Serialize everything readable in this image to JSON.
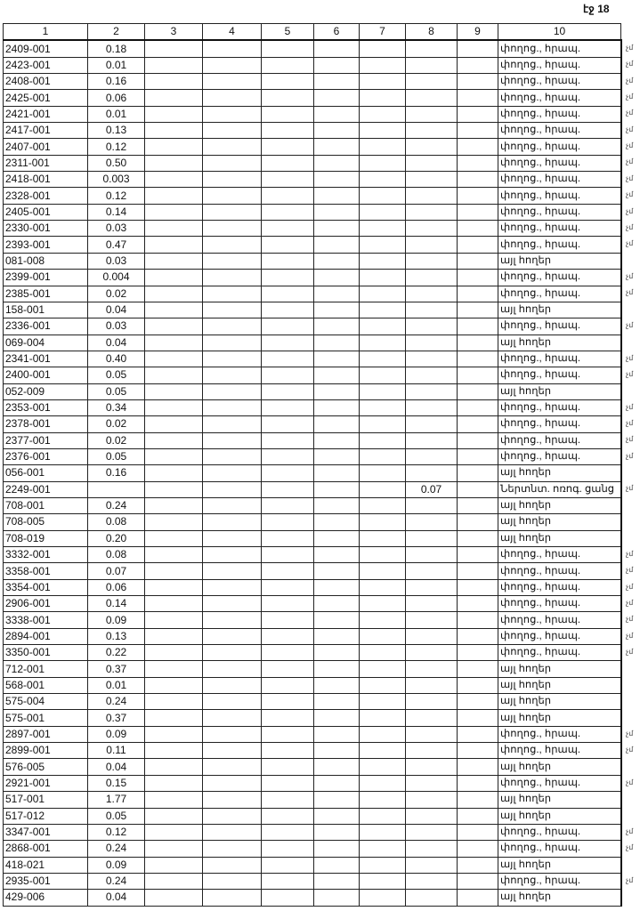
{
  "page_label": "էջ 18",
  "table": {
    "headers": [
      "1",
      "2",
      "3",
      "4",
      "5",
      "6",
      "7",
      "8",
      "9",
      "10"
    ],
    "rows": [
      {
        "c1": "2409-001",
        "c2": "0.18",
        "c8": "",
        "c10": "փողոց., հրապ.",
        "mark": "չմ"
      },
      {
        "c1": "2423-001",
        "c2": "0.01",
        "c8": "",
        "c10": "փողոց., հրապ.",
        "mark": "չմ"
      },
      {
        "c1": "2408-001",
        "c2": "0.16",
        "c8": "",
        "c10": "փողոց., հրապ.",
        "mark": "չմ"
      },
      {
        "c1": "2425-001",
        "c2": "0.06",
        "c8": "",
        "c10": "փողոց., հրապ.",
        "mark": "չմ"
      },
      {
        "c1": "2421-001",
        "c2": "0.01",
        "c8": "",
        "c10": "փողոց., հրապ.",
        "mark": "չմ"
      },
      {
        "c1": "2417-001",
        "c2": "0.13",
        "c8": "",
        "c10": "փողոց., հրապ.",
        "mark": "չմ"
      },
      {
        "c1": "2407-001",
        "c2": "0.12",
        "c8": "",
        "c10": "փողոց., հրապ.",
        "mark": "չմ"
      },
      {
        "c1": "2311-001",
        "c2": "0.50",
        "c8": "",
        "c10": "փողոց., հրապ.",
        "mark": "չմ"
      },
      {
        "c1": "2418-001",
        "c2": "0.003",
        "c8": "",
        "c10": "փողոց., հրապ.",
        "mark": "չմ"
      },
      {
        "c1": "2328-001",
        "c2": "0.12",
        "c8": "",
        "c10": "փողոց., հրապ.",
        "mark": "չմ"
      },
      {
        "c1": "2405-001",
        "c2": "0.14",
        "c8": "",
        "c10": "փողոց., հրապ.",
        "mark": "չմ"
      },
      {
        "c1": "2330-001",
        "c2": "0.03",
        "c8": "",
        "c10": "փողոց., հրապ.",
        "mark": "չմ"
      },
      {
        "c1": "2393-001",
        "c2": "0.47",
        "c8": "",
        "c10": "փողոց., հրապ.",
        "mark": "չմ"
      },
      {
        "c1": "081-008",
        "c2": "0.03",
        "c8": "",
        "c10": "այլ հողեր",
        "mark": ""
      },
      {
        "c1": "2399-001",
        "c2": "0.004",
        "c8": "",
        "c10": "փողոց., հրապ.",
        "mark": "չմ"
      },
      {
        "c1": "2385-001",
        "c2": "0.02",
        "c8": "",
        "c10": "փողոց., հրապ.",
        "mark": "չմ"
      },
      {
        "c1": "158-001",
        "c2": "0.04",
        "c8": "",
        "c10": "այլ հողեր",
        "mark": ""
      },
      {
        "c1": "2336-001",
        "c2": "0.03",
        "c8": "",
        "c10": "փողոց., հրապ.",
        "mark": "չմ"
      },
      {
        "c1": "069-004",
        "c2": "0.04",
        "c8": "",
        "c10": "այլ հողեր",
        "mark": ""
      },
      {
        "c1": "2341-001",
        "c2": "0.40",
        "c8": "",
        "c10": "փողոց., հրապ.",
        "mark": "չմ"
      },
      {
        "c1": "2400-001",
        "c2": "0.05",
        "c8": "",
        "c10": "փողոց., հրապ.",
        "mark": "չմ"
      },
      {
        "c1": "052-009",
        "c2": "0.05",
        "c8": "",
        "c10": "այլ հողեր",
        "mark": ""
      },
      {
        "c1": "2353-001",
        "c2": "0.34",
        "c8": "",
        "c10": "փողոց., հրապ.",
        "mark": "չմ"
      },
      {
        "c1": "2378-001",
        "c2": "0.02",
        "c8": "",
        "c10": "փողոց., հրապ.",
        "mark": "չմ"
      },
      {
        "c1": "2377-001",
        "c2": "0.02",
        "c8": "",
        "c10": "փողոց., հրապ.",
        "mark": "չմ"
      },
      {
        "c1": "2376-001",
        "c2": "0.05",
        "c8": "",
        "c10": "փողոց., հրապ.",
        "mark": "չմ"
      },
      {
        "c1": "056-001",
        "c2": "0.16",
        "c8": "",
        "c10": "այլ հողեր",
        "mark": ""
      },
      {
        "c1": "2249-001",
        "c2": "",
        "c8": "0.07",
        "c10": "Ներտնտ. ոռոգ. ցանց",
        "mark": "չմ"
      },
      {
        "c1": "708-001",
        "c2": "0.24",
        "c8": "",
        "c10": "այլ հողեր",
        "mark": ""
      },
      {
        "c1": "708-005",
        "c2": "0.08",
        "c8": "",
        "c10": "այլ հողեր",
        "mark": ""
      },
      {
        "c1": "708-019",
        "c2": "0.20",
        "c8": "",
        "c10": "այլ հողեր",
        "mark": ""
      },
      {
        "c1": "3332-001",
        "c2": "0.08",
        "c8": "",
        "c10": "փողոց., հրապ.",
        "mark": "չմ"
      },
      {
        "c1": "3358-001",
        "c2": "0.07",
        "c8": "",
        "c10": "փողոց., հրապ.",
        "mark": "չմ"
      },
      {
        "c1": "3354-001",
        "c2": "0.06",
        "c8": "",
        "c10": "փողոց., հրապ.",
        "mark": "չմ"
      },
      {
        "c1": "2906-001",
        "c2": "0.14",
        "c8": "",
        "c10": "փողոց., հրապ.",
        "mark": "չմ"
      },
      {
        "c1": "3338-001",
        "c2": "0.09",
        "c8": "",
        "c10": "փողոց., հրապ.",
        "mark": "չմ"
      },
      {
        "c1": "2894-001",
        "c2": "0.13",
        "c8": "",
        "c10": "փողոց., հրապ.",
        "mark": "չմ"
      },
      {
        "c1": "3350-001",
        "c2": "0.22",
        "c8": "",
        "c10": "փողոց., հրապ.",
        "mark": "չմ"
      },
      {
        "c1": "712-001",
        "c2": "0.37",
        "c8": "",
        "c10": "այլ հողեր",
        "mark": ""
      },
      {
        "c1": "568-001",
        "c2": "0.01",
        "c8": "",
        "c10": "այլ հողեր",
        "mark": ""
      },
      {
        "c1": "575-004",
        "c2": "0.24",
        "c8": "",
        "c10": "այլ հողեր",
        "mark": ""
      },
      {
        "c1": "575-001",
        "c2": "0.37",
        "c8": "",
        "c10": "այլ հողեր",
        "mark": ""
      },
      {
        "c1": "2897-001",
        "c2": "0.09",
        "c8": "",
        "c10": "փողոց., հրապ.",
        "mark": "չմ"
      },
      {
        "c1": "2899-001",
        "c2": "0.11",
        "c8": "",
        "c10": "փողոց., հրապ.",
        "mark": "չմ"
      },
      {
        "c1": "576-005",
        "c2": "0.04",
        "c8": "",
        "c10": "այլ հողեր",
        "mark": ""
      },
      {
        "c1": "2921-001",
        "c2": "0.15",
        "c8": "",
        "c10": "փողոց., հրապ.",
        "mark": "չմ"
      },
      {
        "c1": "517-001",
        "c2": "1.77",
        "c8": "",
        "c10": "այլ հողեր",
        "mark": ""
      },
      {
        "c1": "517-012",
        "c2": "0.05",
        "c8": "",
        "c10": "այլ հողեր",
        "mark": ""
      },
      {
        "c1": "3347-001",
        "c2": "0.12",
        "c8": "",
        "c10": "փողոց., հրապ.",
        "mark": "չմ"
      },
      {
        "c1": "2868-001",
        "c2": "0.24",
        "c8": "",
        "c10": "փողոց., հրապ.",
        "mark": "չմ"
      },
      {
        "c1": "418-021",
        "c2": "0.09",
        "c8": "",
        "c10": "այլ հողեր",
        "mark": ""
      },
      {
        "c1": "2935-001",
        "c2": "0.24",
        "c8": "",
        "c10": "փողոց., հրապ.",
        "mark": "չմ"
      },
      {
        "c1": "429-006",
        "c2": "0.04",
        "c8": "",
        "c10": "այլ հողեր",
        "mark": ""
      }
    ]
  }
}
